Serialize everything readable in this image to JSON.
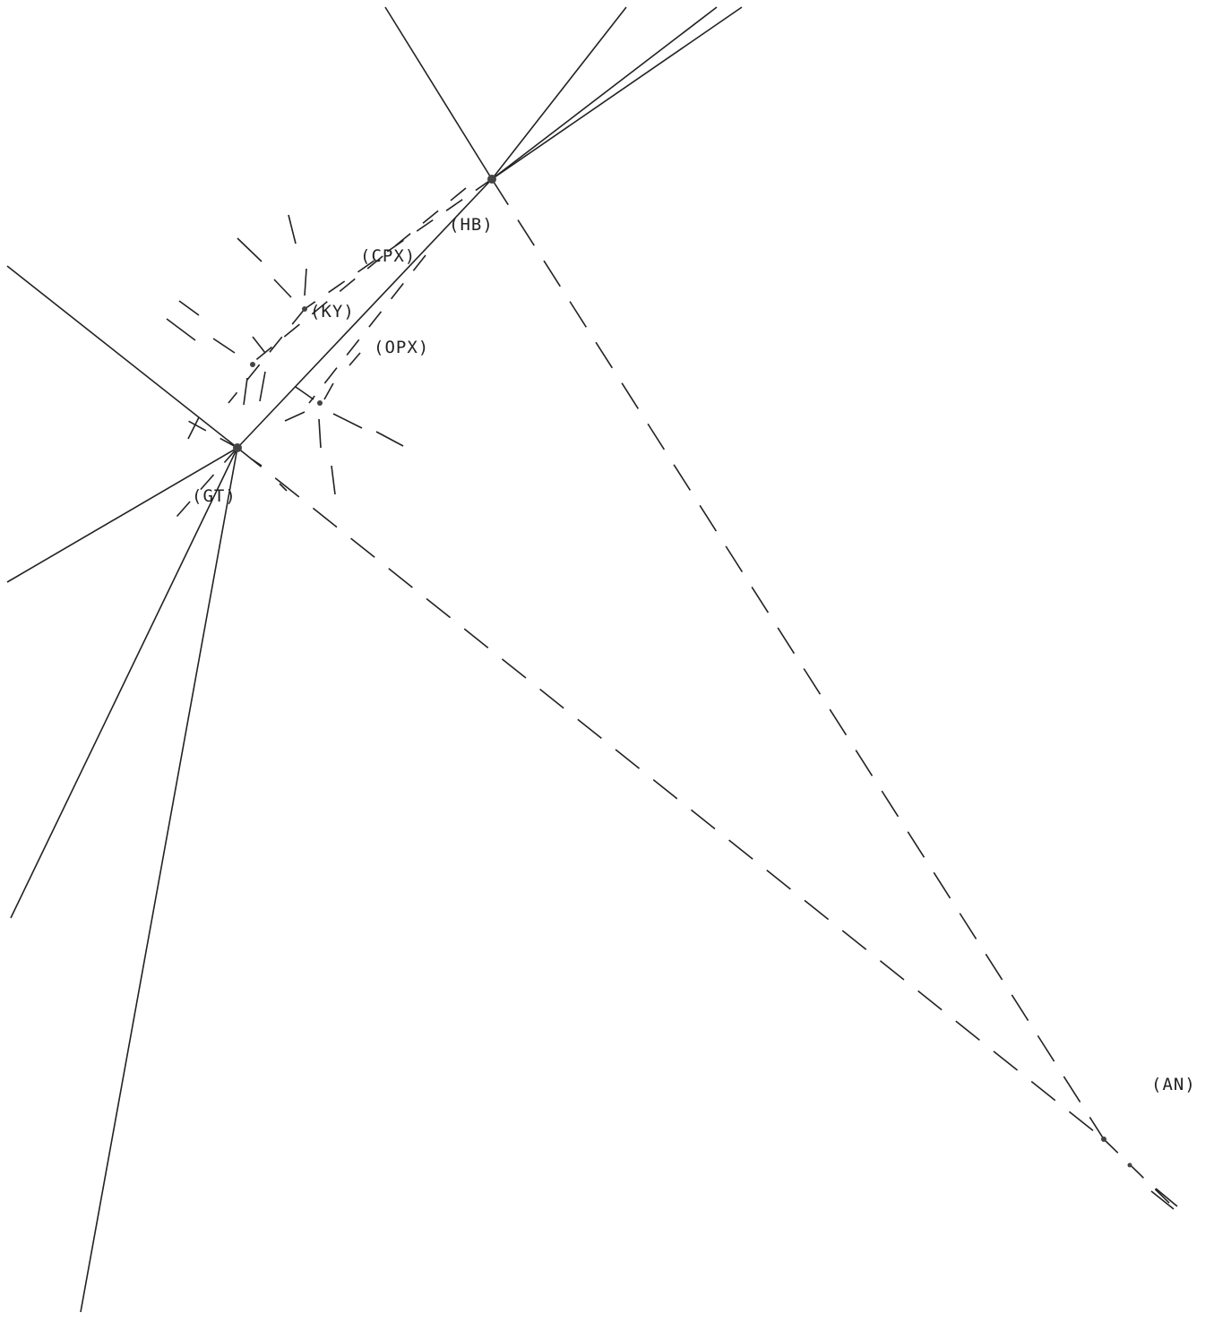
{
  "labels": {
    "hb": "(HB)",
    "cpx": "(CPX)",
    "ky": "(KY)",
    "opx": "(OPX)",
    "gt": "(GT)",
    "an": "(AN)"
  },
  "colors": {
    "line": "#222222",
    "node": "#444444",
    "background": "#ffffff"
  }
}
